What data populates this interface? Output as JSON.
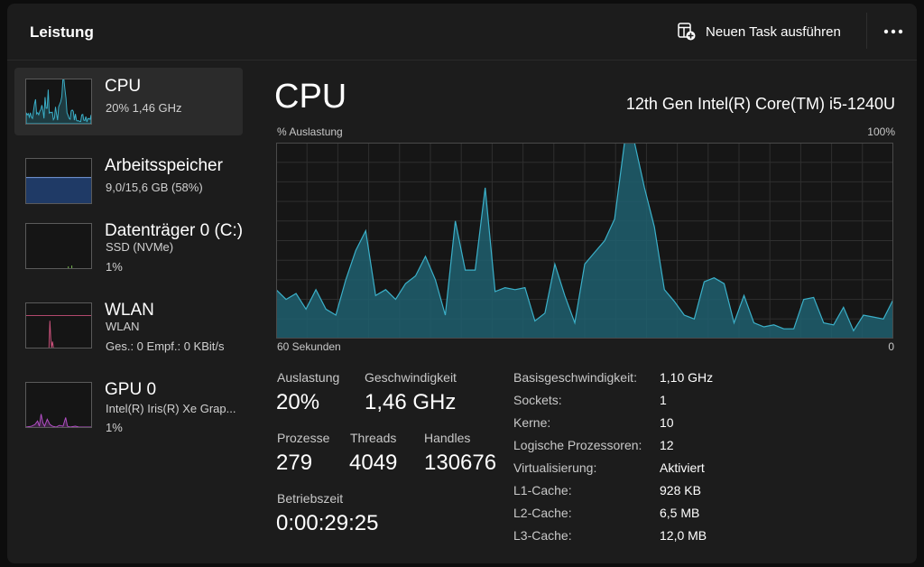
{
  "header": {
    "title": "Leistung",
    "new_task_label": "Neuen Task ausführen",
    "new_task_icon": "new-task-icon",
    "more_icon": "more-icon"
  },
  "sidebar": {
    "items": [
      {
        "name": "CPU",
        "line1": "20%  1,46 GHz",
        "color": "#3bb0c9",
        "active": true
      },
      {
        "name": "Arbeitsspeicher",
        "line1": "9,0/15,6 GB (58%)",
        "color": "#6b8cc7",
        "percent": 58
      },
      {
        "name": "Datenträger 0 (C:)",
        "line1": "SSD (NVMe)",
        "line2": "1%",
        "color": "#7bbf52"
      },
      {
        "name": "WLAN",
        "line1": "WLAN",
        "line2": "Ges.: 0  Empf.: 0 KBit/s",
        "color": "#c9507a"
      },
      {
        "name": "GPU 0",
        "line1": "Intel(R) Iris(R) Xe Grap...",
        "line2": "1%",
        "color": "#b44fc7"
      }
    ]
  },
  "main": {
    "title": "CPU",
    "model": "12th Gen Intel(R) Core(TM) i5-1240U",
    "chart_label_top_left": "% Auslastung",
    "chart_label_top_right": "100%",
    "chart_label_bottom_left": "60 Sekunden",
    "chart_label_bottom_right": "0",
    "stats": {
      "auslastung_label": "Auslastung",
      "auslastung_value": "20%",
      "geschwindigkeit_label": "Geschwindigkeit",
      "geschwindigkeit_value": "1,46 GHz",
      "prozesse_label": "Prozesse",
      "prozesse_value": "279",
      "threads_label": "Threads",
      "threads_value": "4049",
      "handles_label": "Handles",
      "handles_value": "130676",
      "betriebszeit_label": "Betriebszeit",
      "betriebszeit_value": "0:00:29:25"
    },
    "specs": [
      {
        "key": "Basisgeschwindigkeit:",
        "value": "1,10 GHz"
      },
      {
        "key": "Sockets:",
        "value": "1"
      },
      {
        "key": "Kerne:",
        "value": "10"
      },
      {
        "key": "Logische Prozessoren:",
        "value": "12"
      },
      {
        "key": "Virtualisierung:",
        "value": "Aktiviert"
      },
      {
        "key": "L1-Cache:",
        "value": "928 KB"
      },
      {
        "key": "L2-Cache:",
        "value": "6,5 MB"
      },
      {
        "key": "L3-Cache:",
        "value": "12,0 MB"
      }
    ]
  },
  "colors": {
    "accent": "#3bb0c9",
    "background": "#1c1c1c",
    "grid": "#2f2f2f"
  },
  "chart_data": {
    "type": "area",
    "x_range": [
      60,
      0
    ],
    "ylim": [
      0,
      100
    ],
    "grid": true,
    "values": [
      25,
      20,
      23,
      15,
      25,
      15,
      12,
      30,
      45,
      55,
      22,
      25,
      20,
      28,
      32,
      42,
      30,
      12,
      60,
      35,
      35,
      77,
      24,
      26,
      25,
      26,
      9,
      13,
      38,
      22,
      8,
      38,
      44,
      50,
      61,
      100,
      100,
      77,
      57,
      25,
      19,
      12,
      10,
      29,
      31,
      28,
      8,
      22,
      8,
      6,
      7,
      5,
      5,
      20,
      21,
      8,
      7,
      16,
      4,
      12,
      11,
      10,
      20
    ]
  }
}
